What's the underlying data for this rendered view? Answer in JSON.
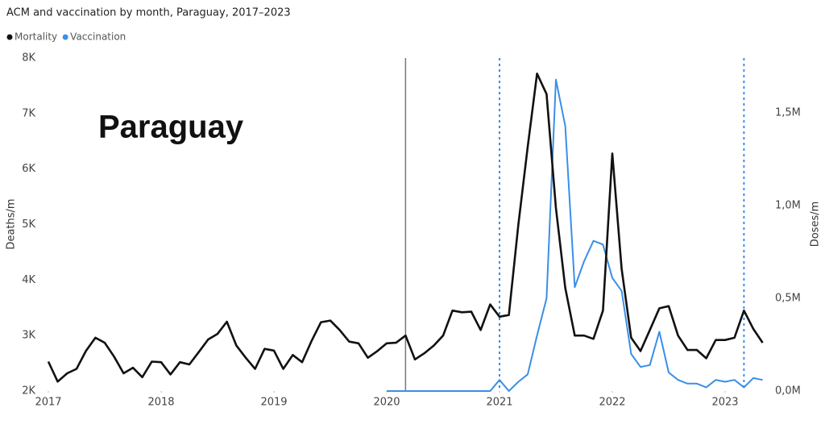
{
  "chart_data": {
    "type": "line",
    "title": "ACM and vaccination by month, Paraguay, 2017–2023",
    "annotation": "Paraguay",
    "y_label": "Deaths/m",
    "y2_label": "Doses/m",
    "x": [
      2017,
      2017.083,
      2017.167,
      2017.25,
      2017.333,
      2017.417,
      2017.5,
      2017.583,
      2017.667,
      2017.75,
      2017.833,
      2017.917,
      2018,
      2018.083,
      2018.167,
      2018.25,
      2018.333,
      2018.417,
      2018.5,
      2018.583,
      2018.667,
      2018.75,
      2018.833,
      2018.917,
      2019,
      2019.083,
      2019.167,
      2019.25,
      2019.333,
      2019.417,
      2019.5,
      2019.583,
      2019.667,
      2019.75,
      2019.833,
      2019.917,
      2020,
      2020.083,
      2020.167,
      2020.25,
      2020.333,
      2020.417,
      2020.5,
      2020.583,
      2020.667,
      2020.75,
      2020.833,
      2020.917,
      2021,
      2021.083,
      2021.167,
      2021.25,
      2021.333,
      2021.417,
      2021.5,
      2021.583,
      2021.667,
      2021.75,
      2021.833,
      2021.917,
      2022,
      2022.083,
      2022.167,
      2022.25,
      2022.333,
      2022.417,
      2022.5,
      2022.583,
      2022.667,
      2022.75,
      2022.833,
      2022.917,
      2023,
      2023.083,
      2023.167,
      2023.25,
      2023.333
    ],
    "series": [
      {
        "name": "Mortality",
        "color": "#111111",
        "values": [
          2530,
          2170,
          2320,
          2400,
          2720,
          2960,
          2870,
          2620,
          2320,
          2420,
          2250,
          2530,
          2520,
          2300,
          2520,
          2480,
          2700,
          2930,
          3030,
          3250,
          2820,
          2600,
          2400,
          2760,
          2730,
          2400,
          2650,
          2520,
          2900,
          3240,
          3270,
          3100,
          2890,
          2860,
          2600,
          2720,
          2860,
          2870,
          3000,
          2570,
          2680,
          2820,
          3000,
          3450,
          3420,
          3430,
          3100,
          3560,
          3340,
          3370,
          5000,
          6400,
          7720,
          7350,
          5300,
          3860,
          3000,
          3000,
          2940,
          3450,
          6280,
          4200,
          2960,
          2720,
          3100,
          3490,
          3530,
          3000,
          2740,
          2740,
          2590,
          2920,
          2920,
          2960,
          3450,
          3120,
          2870
        ]
      },
      {
        "name": "Vaccination",
        "color": "#3a8fe8",
        "axis": "y2",
        "values": [
          null,
          null,
          null,
          null,
          null,
          null,
          null,
          null,
          null,
          null,
          null,
          null,
          null,
          null,
          null,
          null,
          null,
          null,
          null,
          null,
          null,
          null,
          null,
          null,
          null,
          null,
          null,
          null,
          null,
          null,
          null,
          null,
          null,
          null,
          null,
          null,
          0,
          0,
          0,
          0,
          0,
          0,
          0,
          0,
          0,
          0,
          0,
          0,
          60000,
          0,
          50000,
          90000,
          300000,
          500000,
          1680000,
          1430000,
          560000,
          700000,
          810000,
          790000,
          610000,
          540000,
          200000,
          130000,
          140000,
          320000,
          100000,
          60000,
          40000,
          40000,
          20000,
          60000,
          50000,
          60000,
          20000,
          70000,
          60000
        ]
      }
    ],
    "xlim": [
      2017,
      2023.4
    ],
    "xticks": [
      2017,
      2018,
      2019,
      2020,
      2021,
      2022,
      2023
    ],
    "ylim": [
      2000,
      8000
    ],
    "yticks": [
      {
        "value": 2000,
        "label": "2K"
      },
      {
        "value": 3000,
        "label": "3K"
      },
      {
        "value": 4000,
        "label": "4K"
      },
      {
        "value": 5000,
        "label": "5K"
      },
      {
        "value": 6000,
        "label": "6K"
      },
      {
        "value": 7000,
        "label": "7K"
      },
      {
        "value": 8000,
        "label": "8K"
      }
    ],
    "y2lim": [
      0,
      1796000
    ],
    "y2ticks": [
      {
        "value": 0,
        "label": "0,0M"
      },
      {
        "value": 500000,
        "label": "0,5M"
      },
      {
        "value": 1000000,
        "label": "1,0M"
      },
      {
        "value": 1500000,
        "label": "1,5M"
      }
    ],
    "grid": false,
    "reference_lines": [
      {
        "x": 2020.167,
        "color": "#777777",
        "style": "solid"
      },
      {
        "x": 2021,
        "color": "#3a8fe8",
        "style": "dotted"
      },
      {
        "x": 2023.167,
        "color": "#3a8fe8",
        "style": "dotted"
      }
    ]
  }
}
